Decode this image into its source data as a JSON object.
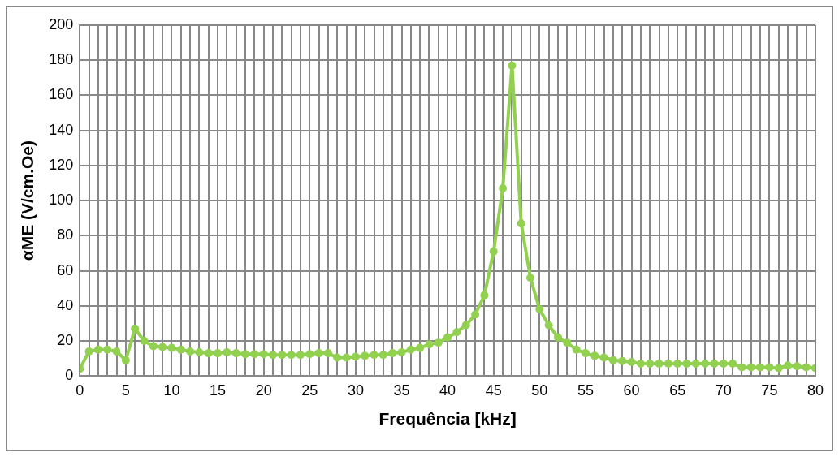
{
  "chart_data": {
    "type": "line",
    "xlabel": "Frequência [kHz]",
    "ylabel": "αME (V/cm.Oe)",
    "x": [
      0,
      1,
      2,
      3,
      4,
      5,
      6,
      7,
      8,
      9,
      10,
      11,
      12,
      13,
      14,
      15,
      16,
      17,
      18,
      19,
      20,
      21,
      22,
      23,
      24,
      25,
      26,
      27,
      28,
      29,
      30,
      31,
      32,
      33,
      34,
      35,
      36,
      37,
      38,
      39,
      40,
      41,
      42,
      43,
      44,
      45,
      46,
      47,
      48,
      49,
      50,
      51,
      52,
      53,
      54,
      55,
      56,
      57,
      58,
      59,
      60,
      61,
      62,
      63,
      64,
      65,
      66,
      67,
      68,
      69,
      70,
      71,
      72,
      73,
      74,
      75,
      76,
      77,
      78,
      79,
      80
    ],
    "series": [
      {
        "color": "#92d050",
        "values": [
          4,
          14,
          15,
          15,
          14,
          9,
          27,
          20,
          17,
          16.5,
          16,
          15,
          14,
          13.5,
          13,
          13,
          13.5,
          13,
          12.5,
          12.5,
          12.5,
          12,
          12,
          12,
          12,
          12.5,
          13,
          13,
          10.5,
          10.5,
          11,
          11.5,
          12,
          12,
          13,
          13.5,
          15,
          16,
          18,
          19,
          22,
          25,
          29,
          35,
          46,
          71,
          107,
          177,
          87,
          56,
          38,
          29,
          22,
          19,
          15,
          13,
          11.5,
          10.5,
          9,
          8.5,
          8,
          7,
          7,
          7,
          7,
          7,
          7,
          7,
          7,
          7,
          7,
          7,
          5,
          5,
          5,
          5,
          4.5,
          6,
          5.5,
          5,
          4.5
        ]
      }
    ],
    "xlim": [
      0,
      80
    ],
    "xticks": [
      0,
      {
        "value": 1,
        "label": null
      },
      {
        "value": 2,
        "label": null
      },
      {
        "value": 3,
        "label": null
      },
      {
        "value": 4,
        "label": null
      },
      5,
      {
        "value": 6,
        "label": null
      },
      {
        "value": 7,
        "label": null
      },
      {
        "value": 8,
        "label": null
      },
      {
        "value": 9,
        "label": null
      },
      10,
      {
        "value": 11,
        "label": null
      },
      {
        "value": 12,
        "label": null
      },
      {
        "value": 13,
        "label": null
      },
      {
        "value": 14,
        "label": null
      },
      15,
      {
        "value": 16,
        "label": null
      },
      {
        "value": 17,
        "label": null
      },
      {
        "value": 18,
        "label": null
      },
      {
        "value": 19,
        "label": null
      },
      20,
      {
        "value": 21,
        "label": null
      },
      {
        "value": 22,
        "label": null
      },
      {
        "value": 23,
        "label": null
      },
      {
        "value": 24,
        "label": null
      },
      25,
      {
        "value": 26,
        "label": null
      },
      {
        "value": 27,
        "label": null
      },
      {
        "value": 28,
        "label": null
      },
      {
        "value": 29,
        "label": null
      },
      30,
      {
        "value": 31,
        "label": null
      },
      {
        "value": 32,
        "label": null
      },
      {
        "value": 33,
        "label": null
      },
      {
        "value": 34,
        "label": null
      },
      35,
      {
        "value": 36,
        "label": null
      },
      {
        "value": 37,
        "label": null
      },
      {
        "value": 38,
        "label": null
      },
      {
        "value": 39,
        "label": null
      },
      40,
      {
        "value": 41,
        "label": null
      },
      {
        "value": 42,
        "label": null
      },
      {
        "value": 43,
        "label": null
      },
      {
        "value": 44,
        "label": null
      },
      45,
      {
        "value": 46,
        "label": null
      },
      {
        "value": 47,
        "label": null
      },
      {
        "value": 48,
        "label": null
      },
      {
        "value": 49,
        "label": null
      },
      50,
      {
        "value": 51,
        "label": null
      },
      {
        "value": 52,
        "label": null
      },
      {
        "value": 53,
        "label": null
      },
      {
        "value": 54,
        "label": null
      },
      55,
      {
        "value": 56,
        "label": null
      },
      {
        "value": 57,
        "label": null
      },
      {
        "value": 58,
        "label": null
      },
      {
        "value": 59,
        "label": null
      },
      60,
      {
        "value": 61,
        "label": null
      },
      {
        "value": 62,
        "label": null
      },
      {
        "value": 63,
        "label": null
      },
      {
        "value": 64,
        "label": null
      },
      65,
      {
        "value": 66,
        "label": null
      },
      {
        "value": 67,
        "label": null
      },
      {
        "value": 68,
        "label": null
      },
      {
        "value": 69,
        "label": null
      },
      70,
      {
        "value": 71,
        "label": null
      },
      {
        "value": 72,
        "label": null
      },
      {
        "value": 73,
        "label": null
      },
      {
        "value": 74,
        "label": null
      },
      75,
      {
        "value": 76,
        "label": null
      },
      {
        "value": 77,
        "label": null
      },
      {
        "value": 78,
        "label": null
      },
      {
        "value": 79,
        "label": null
      },
      80
    ],
    "ylim": [
      0,
      200
    ],
    "yticks": [
      0,
      20,
      40,
      60,
      80,
      100,
      120,
      140,
      160,
      180,
      200
    ],
    "grid": true,
    "legend": false,
    "marker": "circle",
    "line_style": "solid"
  }
}
